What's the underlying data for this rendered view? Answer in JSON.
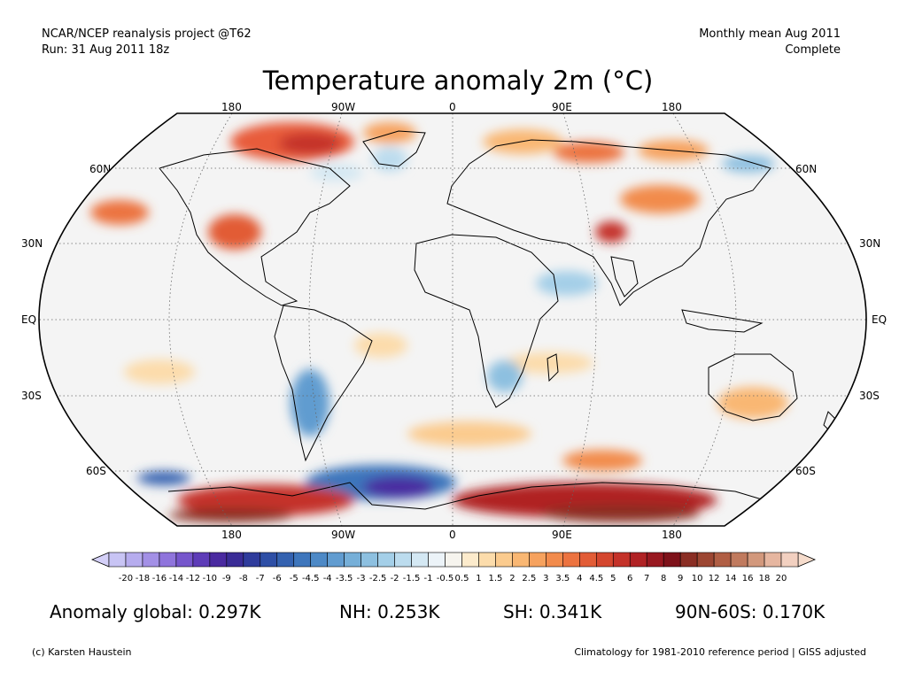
{
  "header": {
    "source_line1": "NCAR/NCEP reanalysis project @T62",
    "source_line2": "Run: 31 Aug 2011 18z",
    "period_line1": "Monthly mean Aug 2011",
    "period_line2": "Complete",
    "title": "Temperature anomaly 2m (°C)"
  },
  "map": {
    "projection": "Robinson",
    "lon_labels": [
      "180",
      "90W",
      "0",
      "90E",
      "180"
    ],
    "lat_labels": [
      "60N",
      "30N",
      "EQ",
      "30S",
      "60S"
    ]
  },
  "colorbar": {
    "tick_labels": [
      "-20",
      "-18",
      "-16",
      "-14",
      "-12",
      "-10",
      "-9",
      "-8",
      "-7",
      "-6",
      "-5",
      "-4.5",
      "-4",
      "-3.5",
      "-3",
      "-2.5",
      "-2",
      "-1.5",
      "-1",
      "-0.5",
      "0.5",
      "1",
      "1.5",
      "2",
      "2.5",
      "3",
      "3.5",
      "4",
      "4.5",
      "5",
      "6",
      "7",
      "8",
      "9",
      "10",
      "12",
      "14",
      "16",
      "18",
      "20"
    ],
    "colors": [
      "#c8c4f4",
      "#b6acee",
      "#a390e6",
      "#8f74dc",
      "#7656cc",
      "#5e3cb8",
      "#4a2aa0",
      "#3a2c96",
      "#2f3c9c",
      "#2e4fa6",
      "#3462b0",
      "#3e76bc",
      "#4d89c6",
      "#619cd0",
      "#76afd8",
      "#8dc0e0",
      "#a4cfe8",
      "#bcdcee",
      "#d4e8f3",
      "#ecf3f8",
      "#f6f4ee",
      "#fcebcc",
      "#fcdcab",
      "#fbcb8e",
      "#f9b773",
      "#f6a25e",
      "#f28b4c",
      "#ec7340",
      "#e25c36",
      "#d4462e",
      "#c43229",
      "#b02224",
      "#981820",
      "#7e121a",
      "#8a2e24",
      "#9c4632",
      "#b05e44",
      "#c07a5e",
      "#d2987c",
      "#e6b6a0",
      "#f2d0c0"
    ],
    "underflow_color": "#d4d0f8",
    "overflow_color": "#f6dccc"
  },
  "stats": {
    "global": "Anomaly global: 0.297K",
    "nh": "NH: 0.253K",
    "sh": "SH: 0.341K",
    "polar": "90N-60S: 0.170K"
  },
  "footer": {
    "credit": "(c) Karsten Haustein",
    "note": "Climatology for 1981-2010 reference period | GISS adjusted"
  },
  "colors": {
    "land_outline": "#000000",
    "ocean_neutral": "#f4f4f4",
    "graticule": "#555555"
  }
}
